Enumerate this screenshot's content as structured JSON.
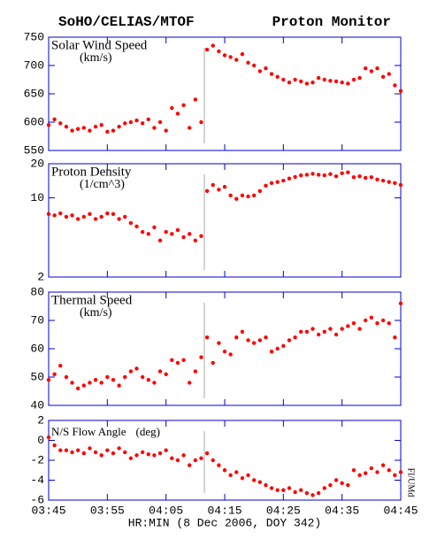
{
  "title": "SoHO/CELIAS/MTOF",
  "header_right": "Proton Monitor",
  "credit": "FI/UMd",
  "chart_data": [
    {
      "type": "scatter",
      "title": "Solar Wind Speed",
      "unit": "(km/s)",
      "color": "#ff0000",
      "x": [
        225,
        226,
        227,
        228,
        229,
        230,
        231,
        232,
        233,
        234,
        235,
        236,
        237,
        238,
        239,
        240,
        241,
        242,
        243,
        244,
        245,
        246,
        247,
        248,
        249,
        250,
        251,
        252,
        253,
        254,
        255,
        256,
        257,
        258,
        259,
        260,
        261,
        262,
        263,
        264,
        265,
        266,
        267,
        268,
        269,
        270,
        271,
        272,
        273,
        274,
        275,
        276,
        277,
        278,
        279,
        280,
        281,
        282,
        283,
        284,
        285
      ],
      "values": [
        595,
        605,
        598,
        592,
        585,
        588,
        590,
        585,
        592,
        595,
        583,
        585,
        592,
        598,
        600,
        603,
        598,
        605,
        590,
        600,
        585,
        625,
        615,
        630,
        590,
        640,
        600,
        728,
        735,
        725,
        718,
        715,
        710,
        720,
        705,
        700,
        690,
        695,
        685,
        680,
        675,
        670,
        675,
        672,
        668,
        670,
        678,
        675,
        673,
        672,
        670,
        668,
        675,
        678,
        695,
        690,
        695,
        680,
        685,
        665,
        655
      ],
      "xlim": [
        225,
        285
      ],
      "ylim": [
        550,
        750
      ],
      "yticks": [
        550,
        600,
        650,
        700,
        750
      ],
      "log": false
    },
    {
      "type": "scatter",
      "title": "Proton Density",
      "unit": "(1/cm^3)",
      "color": "#ff0000",
      "x": [
        225,
        226,
        227,
        228,
        229,
        230,
        231,
        232,
        233,
        234,
        235,
        236,
        237,
        238,
        239,
        240,
        241,
        242,
        243,
        244,
        245,
        246,
        247,
        248,
        249,
        250,
        251,
        252,
        253,
        254,
        255,
        256,
        257,
        258,
        259,
        260,
        261,
        262,
        263,
        264,
        265,
        266,
        267,
        268,
        269,
        270,
        271,
        272,
        273,
        274,
        275,
        276,
        277,
        278,
        279,
        280,
        281,
        282,
        283,
        284,
        285
      ],
      "values": [
        7.2,
        7.0,
        7.3,
        6.8,
        7.0,
        6.5,
        6.8,
        7.2,
        6.5,
        6.8,
        7.3,
        7.2,
        6.5,
        6.8,
        6.0,
        5.6,
        5.0,
        4.8,
        5.5,
        4.2,
        5.0,
        4.8,
        5.2,
        4.5,
        4.8,
        4.2,
        4.6,
        11.5,
        13.0,
        11.8,
        12.5,
        10.5,
        9.8,
        10.5,
        10.3,
        10.5,
        11.5,
        12.8,
        13.5,
        13.8,
        14.2,
        14.8,
        15.3,
        15.8,
        16.0,
        16.3,
        16.0,
        15.8,
        16.2,
        15.5,
        16.5,
        16.8,
        15.2,
        15.5,
        15.0,
        15.2,
        14.5,
        14.2,
        13.8,
        13.5,
        13.0
      ],
      "xlim": [
        225,
        285
      ],
      "ylim": [
        2,
        20
      ],
      "yticks": [
        2,
        10,
        20
      ],
      "log": true
    },
    {
      "type": "scatter",
      "title": "Thermal Speed",
      "unit": "(km/s)",
      "color": "#ff0000",
      "x": [
        225,
        226,
        227,
        228,
        229,
        230,
        231,
        232,
        233,
        234,
        235,
        236,
        237,
        238,
        239,
        240,
        241,
        242,
        243,
        244,
        245,
        246,
        247,
        248,
        249,
        250,
        251,
        252,
        253,
        254,
        255,
        256,
        257,
        258,
        259,
        260,
        261,
        262,
        263,
        264,
        265,
        266,
        267,
        268,
        269,
        270,
        271,
        272,
        273,
        274,
        275,
        276,
        277,
        278,
        279,
        280,
        281,
        282,
        283,
        284,
        285
      ],
      "values": [
        49,
        51,
        54,
        50,
        48,
        46,
        47,
        48,
        49,
        48,
        50,
        49,
        47,
        50,
        52,
        53,
        50,
        49,
        48,
        52,
        51,
        56,
        55,
        56,
        48,
        52,
        57,
        64,
        55,
        62,
        59,
        58,
        64,
        66,
        63,
        62,
        63,
        64,
        59,
        60,
        61,
        63,
        64,
        66,
        66,
        67,
        65,
        66,
        67,
        65,
        67,
        68,
        69,
        67,
        70,
        71,
        69,
        70,
        69,
        64,
        76
      ],
      "xlim": [
        225,
        285
      ],
      "ylim": [
        40,
        80
      ],
      "yticks": [
        40,
        50,
        60,
        70,
        80
      ],
      "log": false
    },
    {
      "type": "scatter",
      "title": "N/S Flow Angle",
      "unit": "(deg)",
      "color": "#ff0000",
      "x": [
        225,
        226,
        227,
        228,
        229,
        230,
        231,
        232,
        233,
        234,
        235,
        236,
        237,
        238,
        239,
        240,
        241,
        242,
        243,
        244,
        245,
        246,
        247,
        248,
        249,
        250,
        251,
        252,
        253,
        254,
        255,
        256,
        257,
        258,
        259,
        260,
        261,
        262,
        263,
        264,
        265,
        266,
        267,
        268,
        269,
        270,
        271,
        272,
        273,
        274,
        275,
        276,
        277,
        278,
        279,
        280,
        281,
        282,
        283,
        284,
        285
      ],
      "values": [
        0.3,
        -0.5,
        -1.0,
        -1.0,
        -1.2,
        -1.0,
        -1.3,
        -0.8,
        -1.2,
        -1.5,
        -1.0,
        -1.3,
        -0.8,
        -1.2,
        -1.8,
        -1.5,
        -1.2,
        -1.4,
        -1.5,
        -1.3,
        -1.0,
        -1.8,
        -2.0,
        -1.5,
        -2.5,
        -2.0,
        -1.8,
        -1.3,
        -2.0,
        -2.5,
        -3.0,
        -3.5,
        -3.2,
        -3.8,
        -3.5,
        -4.0,
        -4.2,
        -4.5,
        -4.8,
        -5.0,
        -5.0,
        -4.8,
        -5.2,
        -5.0,
        -5.3,
        -5.5,
        -5.3,
        -4.8,
        -4.5,
        -4.0,
        -4.3,
        -4.5,
        -3.0,
        -3.5,
        -3.3,
        -2.8,
        -3.2,
        -2.5,
        -3.0,
        -3.5,
        -3.2
      ],
      "xlim": [
        225,
        285
      ],
      "ylim": [
        -6,
        2
      ],
      "yticks": [
        -6,
        -4,
        -2,
        0,
        2
      ],
      "log": false,
      "xlabel": "HR:MIN (8 Dec 2006, DOY 342)",
      "xticks": [
        {
          "value": 225,
          "label": "03:45"
        },
        {
          "value": 235,
          "label": "03:55"
        },
        {
          "value": 245,
          "label": "04:05"
        },
        {
          "value": 255,
          "label": "04:15"
        },
        {
          "value": 265,
          "label": "04:25"
        },
        {
          "value": 275,
          "label": "04:35"
        },
        {
          "value": 285,
          "label": "04:45"
        }
      ]
    }
  ]
}
